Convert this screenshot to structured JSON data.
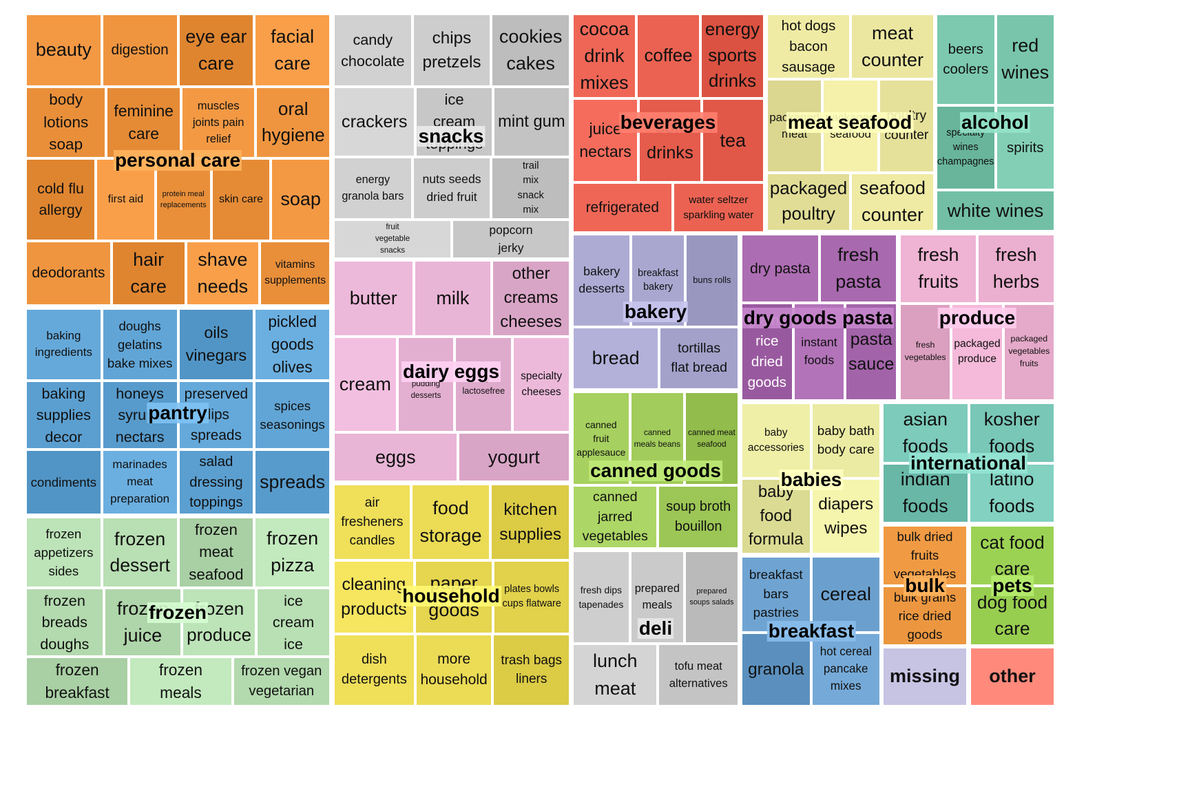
{
  "chart_data": {
    "type": "treemap",
    "title": "",
    "groups": [
      {
        "name": "personal care",
        "color": "#e98f3a",
        "items": [
          {
            "label": "beauty",
            "value": 5.1
          },
          {
            "label": "body\nlotions\nsoap",
            "value": 5.3
          },
          {
            "label": "cold flu\nallergy",
            "value": 5.3
          },
          {
            "label": "deodorants",
            "value": 5.1
          },
          {
            "label": "digestion",
            "value": 5.1
          },
          {
            "label": "eye ear\ncare",
            "value": 5.1
          },
          {
            "label": "facial\ncare",
            "value": 5.1
          },
          {
            "label": "feminine\ncare",
            "value": 4.9
          },
          {
            "label": "muscles\njoints pain\nrelief",
            "value": 4.9
          },
          {
            "label": "oral\nhygiene",
            "value": 4.9
          },
          {
            "label": "first aid",
            "value": 4.5
          },
          {
            "label": "protein meal\nreplacements",
            "value": 4.2
          },
          {
            "label": "skin care",
            "value": 4.5
          },
          {
            "label": "soap",
            "value": 4.5
          },
          {
            "label": "hair\ncare",
            "value": 4.4
          },
          {
            "label": "shave\nneeds",
            "value": 4.4
          },
          {
            "label": "vitamins\nsupplements",
            "value": 4.2
          }
        ]
      },
      {
        "name": "snacks",
        "color": "#c7c7c7",
        "items": [
          {
            "label": "candy\nchocolate",
            "value": 5.0
          },
          {
            "label": "chips\npretzels",
            "value": 5.0
          },
          {
            "label": "cookies\ncakes",
            "value": 5.0
          },
          {
            "label": "crackers",
            "value": 5.0
          },
          {
            "label": "ice\ncream\ntoppings",
            "value": 4.7
          },
          {
            "label": "mint gum",
            "value": 4.7
          },
          {
            "label": "energy\ngranola bars",
            "value": 4.3
          },
          {
            "label": "nuts seeds\ndried fruit",
            "value": 4.3
          },
          {
            "label": "trail\nmix\nsnack\nmix",
            "value": 4.3
          },
          {
            "label": "fruit\nvegetable\nsnacks",
            "value": 4.0
          },
          {
            "label": "popcorn\njerky",
            "value": 4.0
          }
        ]
      },
      {
        "name": "beverages",
        "color": "#e55c4c",
        "items": [
          {
            "label": "cocoa\ndrink\nmixes",
            "value": 3.9
          },
          {
            "label": "coffee",
            "value": 3.9
          },
          {
            "label": "energy\nsports\ndrinks",
            "value": 3.9
          },
          {
            "label": "juice\nnectars",
            "value": 4.0
          },
          {
            "label": "soft\ndrinks",
            "value": 3.8
          },
          {
            "label": "tea",
            "value": 3.8
          },
          {
            "label": "refrigerated",
            "value": 3.6
          },
          {
            "label": "water seltzer\nsparkling water",
            "value": 3.3
          }
        ]
      },
      {
        "name": "meat seafood",
        "color": "#e5e19a",
        "items": [
          {
            "label": "hot dogs\nbacon\nsausage",
            "value": 3.8
          },
          {
            "label": "meat\ncounter",
            "value": 3.8
          },
          {
            "label": "packaged\nmeat",
            "value": 3.6
          },
          {
            "label": "packaged\nseafood",
            "value": 3.6
          },
          {
            "label": "poultry\ncounter",
            "value": 3.6
          },
          {
            "label": "packaged\npoultry",
            "value": 3.4
          },
          {
            "label": "seafood\ncounter",
            "value": 3.4
          }
        ]
      },
      {
        "name": "alcohol",
        "color": "#72bfa6",
        "items": [
          {
            "label": "beers\ncoolers",
            "value": 3.0
          },
          {
            "label": "red\nwines",
            "value": 3.0
          },
          {
            "label": "specialty\nwines\nchampagnes",
            "value": 2.8
          },
          {
            "label": "spirits",
            "value": 2.8
          },
          {
            "label": "white wines",
            "value": 2.7
          }
        ]
      },
      {
        "name": "dairy eggs",
        "color": "#e3afd0",
        "items": [
          {
            "label": "butter",
            "value": 4.2
          },
          {
            "label": "milk",
            "value": 4.1
          },
          {
            "label": "other\ncreams\ncheeses",
            "value": 4.1
          },
          {
            "label": "cream",
            "value": 4.2
          },
          {
            "label": "refrigerated\npudding\ndesserts",
            "value": 3.8
          },
          {
            "label": "soy\nlactosefree",
            "value": 3.8
          },
          {
            "label": "specialty\ncheeses",
            "value": 3.8
          },
          {
            "label": "eggs",
            "value": 4.2
          },
          {
            "label": "yogurt",
            "value": 3.8
          }
        ]
      },
      {
        "name": "bakery",
        "color": "#a3a1ca",
        "items": [
          {
            "label": "bakery\ndesserts",
            "value": 3.6
          },
          {
            "label": "breakfast\nbakery",
            "value": 3.3
          },
          {
            "label": "buns rolls",
            "value": 3.3
          },
          {
            "label": "bread",
            "value": 3.6
          },
          {
            "label": "tortillas\nflat bread",
            "value": 3.3
          }
        ]
      },
      {
        "name": "dry goods pasta",
        "color": "#a363a9",
        "items": [
          {
            "label": "dry pasta",
            "value": 3.6
          },
          {
            "label": "fresh\npasta",
            "value": 3.6
          },
          {
            "label": "grains\nrice\ndried\ngoods",
            "value": 3.4
          },
          {
            "label": "instant\nfoods",
            "value": 3.4
          },
          {
            "label": "pasta\nsauce",
            "value": 3.4
          }
        ]
      },
      {
        "name": "produce",
        "color": "#e5a9c9",
        "items": [
          {
            "label": "fresh\nfruits",
            "value": 3.2
          },
          {
            "label": "fresh\nherbs",
            "value": 3.2
          },
          {
            "label": "fresh\nvegetables",
            "value": 3.0
          },
          {
            "label": "packaged\nproduce",
            "value": 3.0
          },
          {
            "label": "packaged\nvegetables\nfruits",
            "value": 3.0
          }
        ]
      },
      {
        "name": "pantry",
        "color": "#5b9fd0",
        "items": [
          {
            "label": "baking\ningredients",
            "value": 4.3
          },
          {
            "label": "doughs\ngelatins\nbake mixes",
            "value": 4.3
          },
          {
            "label": "oils\nvinegars",
            "value": 4.3
          },
          {
            "label": "pickled\ngoods\nolives",
            "value": 4.3
          },
          {
            "label": "baking\nsupplies\ndecor",
            "value": 4.1
          },
          {
            "label": "honeys\nsyrups\nnectars",
            "value": 4.1
          },
          {
            "label": "preserved\ndips\nspreads",
            "value": 4.1
          },
          {
            "label": "spices\nseasonings",
            "value": 4.1
          },
          {
            "label": "condiments",
            "value": 3.9
          },
          {
            "label": "marinades\nmeat\npreparation",
            "value": 3.9
          },
          {
            "label": "salad\ndressing\ntoppings",
            "value": 3.9
          },
          {
            "label": "spreads",
            "value": 3.9
          }
        ]
      },
      {
        "name": "frozen",
        "color": "#b3d9ae",
        "items": [
          {
            "label": "frozen\nappetizers\nsides",
            "value": 4.0
          },
          {
            "label": "frozen\ndessert",
            "value": 4.0
          },
          {
            "label": "frozen\nmeat\nseafood",
            "value": 4.0
          },
          {
            "label": "frozen\npizza",
            "value": 4.0
          },
          {
            "label": "frozen\nbreads\ndoughs",
            "value": 4.0
          },
          {
            "label": "frozen\njuice",
            "value": 4.0
          },
          {
            "label": "frozen\nproduce",
            "value": 3.8
          },
          {
            "label": "ice\ncream\nice",
            "value": 3.8
          },
          {
            "label": "frozen\nbreakfast",
            "value": 3.8
          },
          {
            "label": "frozen\nmeals",
            "value": 3.8
          },
          {
            "label": "frozen vegan\nvegetarian",
            "value": 3.6
          }
        ]
      },
      {
        "name": "household",
        "color": "#e5d54f",
        "items": [
          {
            "label": "air\nfresheners\ncandles",
            "value": 3.8
          },
          {
            "label": "food\nstorage",
            "value": 3.9
          },
          {
            "label": "kitchen\nsupplies",
            "value": 3.9
          },
          {
            "label": "cleaning\nproducts",
            "value": 3.8
          },
          {
            "label": "paper\ngoods",
            "value": 3.7
          },
          {
            "label": "plates bowls\ncups flatware",
            "value": 3.6
          },
          {
            "label": "dish\ndetergents",
            "value": 3.8
          },
          {
            "label": "more\nhousehold",
            "value": 3.6
          },
          {
            "label": "trash bags\nliners",
            "value": 3.6
          }
        ]
      },
      {
        "name": "canned goods",
        "color": "#9cc655",
        "items": [
          {
            "label": "canned\nfruit\napplesauce",
            "value": 3.6
          },
          {
            "label": "canned\nmeals beans",
            "value": 3.4
          },
          {
            "label": "canned meat\nseafood",
            "value": 3.4
          },
          {
            "label": "canned\njarred\nvegetables",
            "value": 3.6
          },
          {
            "label": "soup broth\nbouillon",
            "value": 3.4
          }
        ]
      },
      {
        "name": "deli",
        "color": "#c4c4c4",
        "items": [
          {
            "label": "fresh dips\ntapenades",
            "value": 3.6
          },
          {
            "label": "prepared\nmeals",
            "value": 3.4
          },
          {
            "label": "prepared\nsoups salads",
            "value": 3.4
          },
          {
            "label": "lunch\nmeat",
            "value": 3.6
          },
          {
            "label": "tofu meat\nalternatives",
            "value": 3.4
          }
        ]
      },
      {
        "name": "babies",
        "color": "#e5e59d",
        "items": [
          {
            "label": "baby\naccessories",
            "value": 2.9
          },
          {
            "label": "baby bath\nbody care",
            "value": 2.9
          },
          {
            "label": "baby\nfood\nformula",
            "value": 2.9
          },
          {
            "label": "diapers\nwipes",
            "value": 2.9
          }
        ]
      },
      {
        "name": "international",
        "color": "#72c1b1",
        "items": [
          {
            "label": "asian\nfoods",
            "value": 3.0
          },
          {
            "label": "kosher\nfoods",
            "value": 3.0
          },
          {
            "label": "indian\nfoods",
            "value": 3.0
          },
          {
            "label": "latino\nfoods",
            "value": 3.0
          }
        ]
      },
      {
        "name": "breakfast",
        "color": "#659ac8",
        "items": [
          {
            "label": "breakfast\nbars\npastries",
            "value": 2.9
          },
          {
            "label": "cereal",
            "value": 2.9
          },
          {
            "label": "granola",
            "value": 2.8
          },
          {
            "label": "hot cereal\npancake\nmixes",
            "value": 2.8
          }
        ]
      },
      {
        "name": "bulk",
        "color": "#e6913a",
        "items": [
          {
            "label": "bulk dried\nfruits\nvegetables",
            "value": 2.0
          },
          {
            "label": "bulk grains\nrice dried\ngoods",
            "value": 2.0
          }
        ]
      },
      {
        "name": "pets",
        "color": "#92c84a",
        "items": [
          {
            "label": "cat food\ncare",
            "value": 2.0
          },
          {
            "label": "dog food\ncare",
            "value": 2.0
          }
        ]
      },
      {
        "name": "missing",
        "color": "#bdb9d9",
        "items": [
          {
            "label": "missing",
            "value": 1.5
          }
        ]
      },
      {
        "name": "other",
        "color": "#fb8072",
        "items": [
          {
            "label": "other",
            "value": 1.5
          }
        ]
      }
    ]
  }
}
